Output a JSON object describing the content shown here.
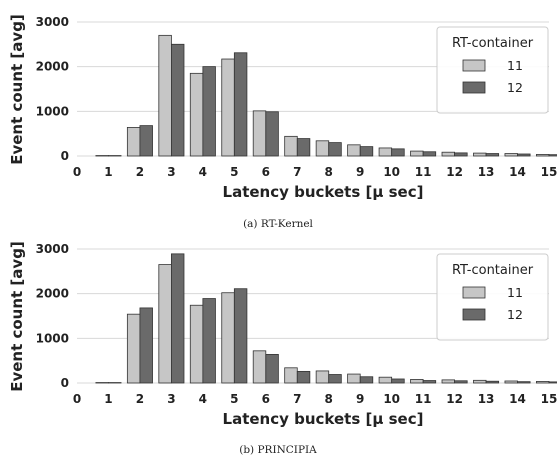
{
  "chart_data": [
    {
      "type": "bar",
      "caption": "(a) RT-Kernel",
      "xlabel": "Latency buckets [μ sec]",
      "ylabel": "Event count [avg]",
      "categories": [
        "0",
        "1",
        "2",
        "3",
        "4",
        "5",
        "6",
        "7",
        "8",
        "9",
        "10",
        "11",
        "12",
        "13",
        "14",
        "15"
      ],
      "yticks": [
        "0",
        "1000",
        "2000",
        "3000"
      ],
      "ylim": [
        0,
        3200
      ],
      "grid": "horizontal",
      "legend": {
        "title": "RT-container",
        "placement": "top-right"
      },
      "series": [
        {
          "name": "11",
          "color": "#c6c6c6",
          "values": [
            0,
            10,
            640,
            2700,
            1850,
            2170,
            1010,
            440,
            340,
            250,
            180,
            110,
            85,
            65,
            55,
            35
          ]
        },
        {
          "name": "12",
          "color": "#6a6a6a",
          "values": [
            0,
            10,
            680,
            2500,
            2000,
            2310,
            990,
            390,
            300,
            210,
            160,
            95,
            70,
            55,
            45,
            30
          ]
        }
      ]
    },
    {
      "type": "bar",
      "caption": "(b) PRINCIPIA",
      "xlabel": "Latency buckets [μ sec]",
      "ylabel": "Event count [avg]",
      "categories": [
        "0",
        "1",
        "2",
        "3",
        "4",
        "5",
        "6",
        "7",
        "8",
        "9",
        "10",
        "11",
        "12",
        "13",
        "14",
        "15"
      ],
      "yticks": [
        "0",
        "1000",
        "2000",
        "3000"
      ],
      "ylim": [
        0,
        3200
      ],
      "grid": "horizontal",
      "legend": {
        "title": "RT-container",
        "placement": "top-right"
      },
      "series": [
        {
          "name": "11",
          "color": "#c6c6c6",
          "values": [
            0,
            10,
            1540,
            2650,
            1740,
            2020,
            720,
            340,
            270,
            200,
            130,
            80,
            70,
            60,
            45,
            35
          ]
        },
        {
          "name": "12",
          "color": "#6a6a6a",
          "values": [
            0,
            10,
            1680,
            2890,
            1890,
            2110,
            640,
            260,
            190,
            140,
            90,
            55,
            50,
            40,
            30,
            25
          ]
        }
      ]
    }
  ]
}
